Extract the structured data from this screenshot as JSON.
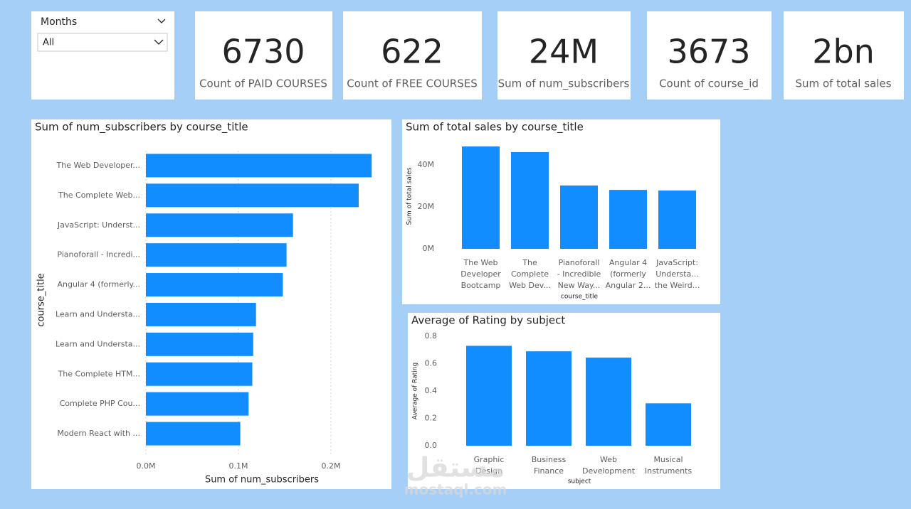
{
  "slicer": {
    "label": "Months",
    "selection": "All"
  },
  "cards": [
    {
      "value": "6730",
      "label": "Count of PAID COURSES"
    },
    {
      "value": "622",
      "label": "Count of FREE COURSES"
    },
    {
      "value": "24M",
      "label": "Sum of num_subscribers"
    },
    {
      "value": "3673",
      "label": "Count of course_id"
    },
    {
      "value": "2bn",
      "label": "Sum of total sales"
    }
  ],
  "chart_data": [
    {
      "type": "hbar",
      "title": "Sum of num_subscribers by course_title",
      "x_label": "Sum of num_subscribers",
      "y_label": "course_title",
      "categories": [
        "The Web Developer...",
        "The Complete Web...",
        "JavaScript: Underst...",
        "Pianoforall - Incredi...",
        "Angular 4 (formerly...",
        "Learn and Understa...",
        "Learn and Understa...",
        "The Complete HTM...",
        "Complete PHP Cou...",
        "Modern React with ..."
      ],
      "values": [
        244000,
        230000,
        159000,
        152000,
        148000,
        119000,
        116000,
        115000,
        111000,
        102000
      ],
      "color": "#118dff",
      "xlim": [
        0,
        250000
      ],
      "xticks": [
        {
          "value": 0,
          "label": "0.0M"
        },
        {
          "value": 100000,
          "label": "0.1M"
        },
        {
          "value": 200000,
          "label": "0.2M"
        }
      ],
      "grid": true
    },
    {
      "type": "bar",
      "title": "Sum of total sales by course_title",
      "x_label": "course_title",
      "y_label": "Sum of total sales",
      "categories": [
        "The Web Developer Bootcamp",
        "The Complete Web Dev...",
        "Pianoforall - Incredible New Way...",
        "Angular 4 (formerly Angular 2...",
        "JavaScript: Understa... the Weird..."
      ],
      "values": [
        48800000,
        46100000,
        30200000,
        28100000,
        27800000
      ],
      "color": "#118dff",
      "ylim": [
        0,
        50000000
      ],
      "yticks": [
        {
          "value": 0,
          "label": "0M"
        },
        {
          "value": 20000000,
          "label": "20M"
        },
        {
          "value": 40000000,
          "label": "40M"
        }
      ],
      "grid": false
    },
    {
      "type": "bar",
      "title": "Average of Rating by subject",
      "x_label": "subject",
      "y_label": "Average of Rating",
      "categories": [
        "Graphic Design",
        "Business Finance",
        "Web Development",
        "Musical Instruments"
      ],
      "values": [
        0.73,
        0.69,
        0.644,
        0.31
      ],
      "color": "#118dff",
      "ylim": [
        0,
        0.8
      ],
      "yticks": [
        {
          "value": 0,
          "label": "0.0"
        },
        0.2,
        0.4,
        0.6,
        0.8
      ],
      "grid": false
    }
  ],
  "watermark": {
    "arabic": "مستقل",
    "latin": "mostaql.com"
  }
}
